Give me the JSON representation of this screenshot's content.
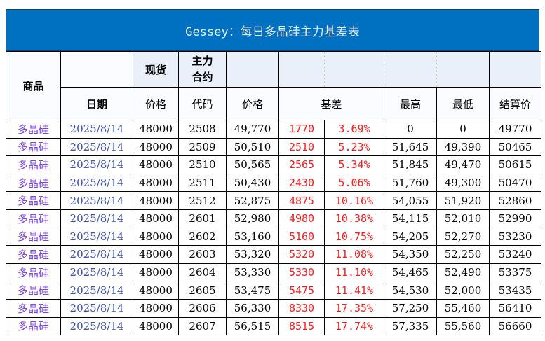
{
  "title": "Gessey：每日多晶硅主力基差表",
  "header": {
    "product": "商品",
    "spot": "现货",
    "main_contract": "主力\n合约",
    "date": "日期",
    "spot_price": "价格",
    "code": "代码",
    "price": "价格",
    "basis": "基差",
    "high": "最高",
    "low": "最低",
    "settle": "结算价"
  },
  "rows": [
    [
      "多晶硅",
      "2025/8/14",
      "48000",
      "2508",
      "49,770",
      "1770",
      "3.69%",
      "0",
      "0",
      "49770"
    ],
    [
      "多晶硅",
      "2025/8/14",
      "48000",
      "2509",
      "50,510",
      "2510",
      "5.23%",
      "51,645",
      "49,390",
      "50465"
    ],
    [
      "多晶硅",
      "2025/8/14",
      "48000",
      "2510",
      "50,565",
      "2565",
      "5.34%",
      "51,845",
      "49,470",
      "50615"
    ],
    [
      "多晶硅",
      "2025/8/14",
      "48000",
      "2511",
      "50,430",
      "2430",
      "5.06%",
      "51,760",
      "49,300",
      "50470"
    ],
    [
      "多晶硅",
      "2025/8/14",
      "48000",
      "2512",
      "52,875",
      "4875",
      "10.16%",
      "54,055",
      "51,920",
      "52860"
    ],
    [
      "多晶硅",
      "2025/8/14",
      "48000",
      "2601",
      "52,980",
      "4980",
      "10.38%",
      "54,115",
      "52,010",
      "52990"
    ],
    [
      "多晶硅",
      "2025/8/14",
      "48000",
      "2602",
      "53,160",
      "5160",
      "10.75%",
      "54,205",
      "52,270",
      "53230"
    ],
    [
      "多晶硅",
      "2025/8/14",
      "48000",
      "2603",
      "53,320",
      "5320",
      "11.08%",
      "54,350",
      "52,250",
      "53240"
    ],
    [
      "多晶硅",
      "2025/8/14",
      "48000",
      "2604",
      "53,330",
      "5330",
      "11.10%",
      "54,465",
      "52,490",
      "53375"
    ],
    [
      "多晶硅",
      "2025/8/14",
      "48000",
      "2605",
      "53,475",
      "5475",
      "11.41%",
      "54,530",
      "52,000",
      "53435"
    ],
    [
      "多晶硅",
      "2025/8/14",
      "48000",
      "2606",
      "56,330",
      "8330",
      "17.35%",
      "57,250",
      "55,460",
      "56410"
    ],
    [
      "多晶硅",
      "2025/8/14",
      "48000",
      "2607",
      "56,515",
      "8515",
      "17.74%",
      "57,335",
      "55,560",
      "56660"
    ]
  ]
}
